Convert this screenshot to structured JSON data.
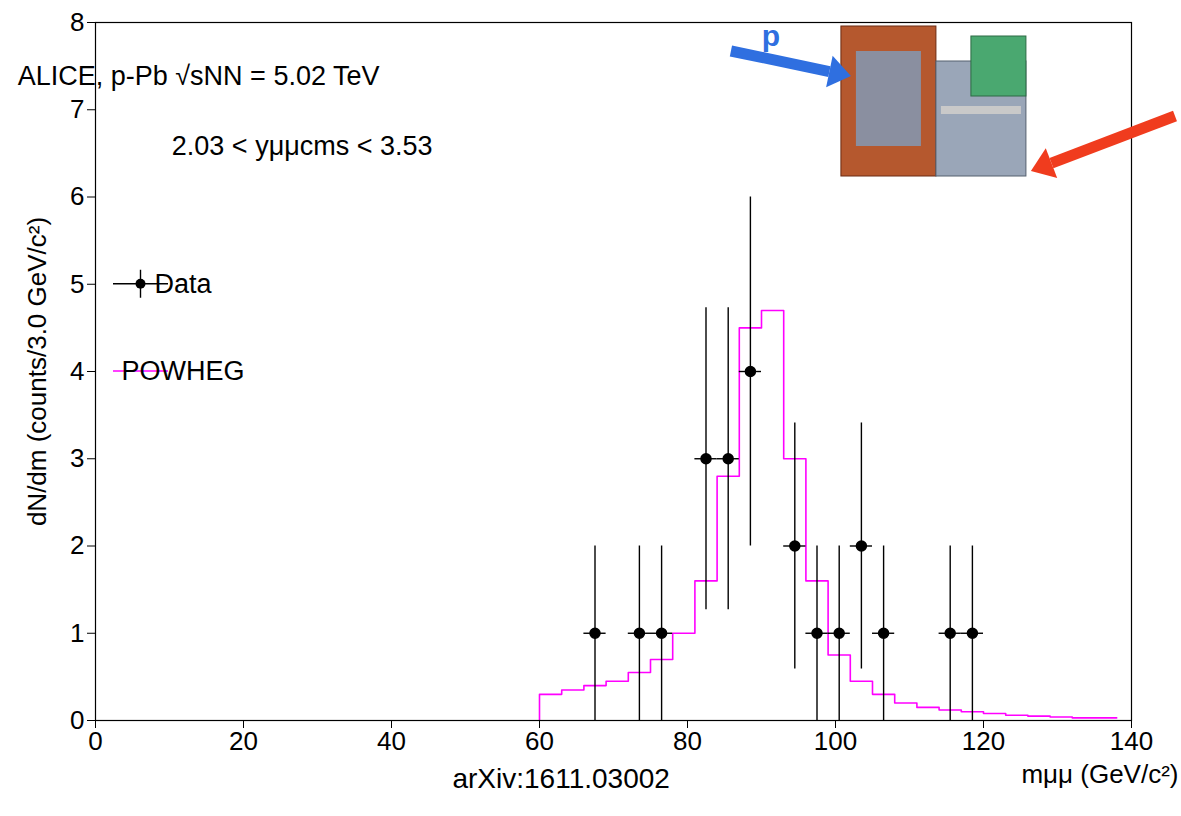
{
  "chart_data": {
    "type": "scatter",
    "x_label": "mμμ (GeV/c²)",
    "y_label": "dN/dm (counts/3.0 GeV/c²)",
    "xlim": [
      0,
      140
    ],
    "xticks": [
      0,
      20,
      40,
      60,
      80,
      100,
      120,
      140
    ],
    "ylim": [
      0,
      8
    ],
    "yticks": [
      0,
      1,
      2,
      3,
      4,
      5,
      6,
      7,
      8
    ],
    "grid": false,
    "legend": "upper left",
    "annotations": [
      "ALICE, p-Pb √sNN = 5.02 TeV",
      "2.03 < yμμcms < 3.53",
      "p",
      "arXiv:1611.03002"
    ],
    "series": [
      {
        "name": "Data",
        "type": "scatter",
        "marker": "circle",
        "color": "#000000",
        "x": [
          67.5,
          73.5,
          76.5,
          82.5,
          85.5,
          88.5,
          94.5,
          97.5,
          100.5,
          103.5,
          106.5,
          115.5,
          118.5
        ],
        "values": [
          1,
          1,
          1,
          3,
          3,
          4,
          2,
          1,
          1,
          2,
          1,
          1,
          1
        ],
        "xerr": [
          1.5,
          1.5,
          1.5,
          1.5,
          1.5,
          1.5,
          1.5,
          1.5,
          1.5,
          1.5,
          1.5,
          1.5,
          1.5
        ],
        "yerr": [
          1,
          1,
          1,
          1.73,
          1.73,
          2,
          1.41,
          1,
          1,
          1.41,
          1,
          1,
          1
        ]
      },
      {
        "name": "POWHEG",
        "type": "step",
        "color": "#ff00ff",
        "bins": [
          60,
          63,
          66,
          69,
          72,
          75,
          78,
          81,
          84,
          87,
          90,
          93,
          96,
          99,
          102,
          105,
          108,
          111,
          114,
          117,
          120,
          123,
          126,
          129,
          132,
          135,
          138
        ],
        "values": [
          0.3,
          0.35,
          0.4,
          0.45,
          0.55,
          0.7,
          1.0,
          1.6,
          2.8,
          4.5,
          4.7,
          3.0,
          1.6,
          0.75,
          0.45,
          0.3,
          0.2,
          0.15,
          0.12,
          0.1,
          0.08,
          0.06,
          0.05,
          0.04,
          0.03,
          0.03
        ]
      }
    ]
  }
}
